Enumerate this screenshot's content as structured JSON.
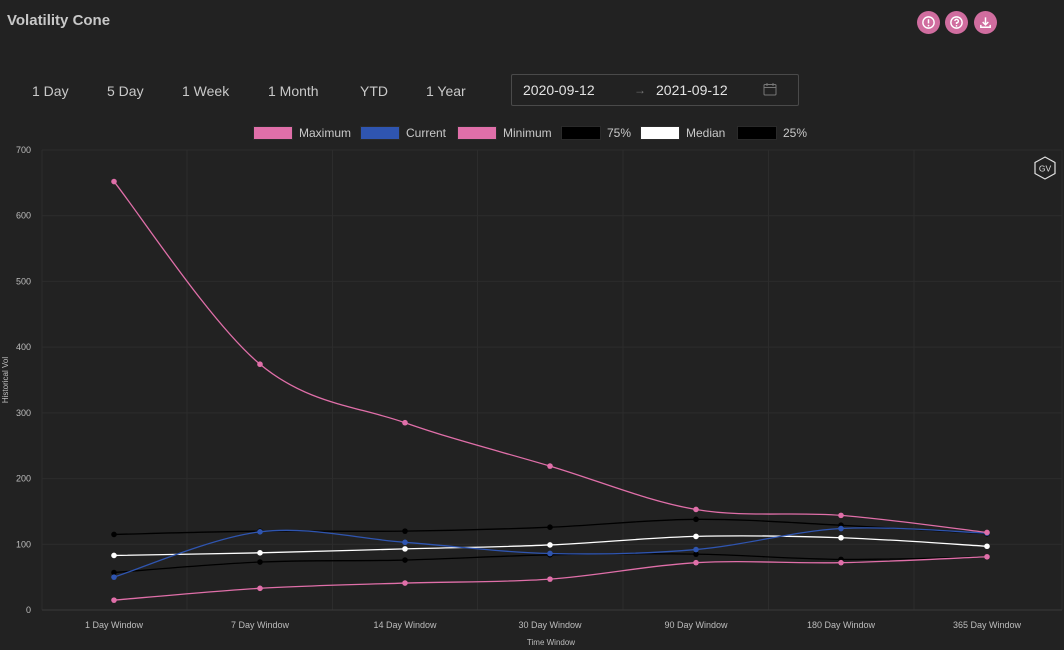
{
  "header": {
    "title": "Volatility Cone"
  },
  "actions": [
    {
      "name": "info-button",
      "icon": "alert-circle-icon"
    },
    {
      "name": "help-button",
      "icon": "question-circle-icon"
    },
    {
      "name": "download-button",
      "icon": "download-icon"
    }
  ],
  "ranges": [
    "1 Day",
    "5 Day",
    "1 Week",
    "1 Month",
    "YTD",
    "1 Year"
  ],
  "date_range": {
    "start": "2020-09-12",
    "end": "2021-09-12",
    "separator": "→"
  },
  "badge": {
    "text": "GV"
  },
  "colors": {
    "background": "#222222",
    "accent": "#d06d9f",
    "maximum": "#e06fa9",
    "current": "#2f55b0",
    "minimum": "#e06fa9",
    "p75": "#000000",
    "median": "#ffffff",
    "p25": "#000000"
  },
  "chart_data": {
    "type": "line",
    "title": "",
    "xlabel": "Time Window",
    "ylabel": "Historical Vol",
    "categories": [
      "1 Day Window",
      "7 Day Window",
      "14 Day Window",
      "30 Day Window",
      "90 Day Window",
      "180 Day Window",
      "365 Day Window"
    ],
    "ylim": [
      0,
      700
    ],
    "yticks": [
      0,
      100,
      200,
      300,
      400,
      500,
      600,
      700
    ],
    "grid": true,
    "legend_position": "top",
    "series": [
      {
        "name": "Maximum",
        "color": "#e06fa9",
        "values": [
          652,
          374,
          285,
          219,
          153,
          144,
          118
        ]
      },
      {
        "name": "Current",
        "color": "#2f55b0",
        "values": [
          50,
          119,
          103,
          86,
          92,
          124,
          117
        ]
      },
      {
        "name": "Minimum",
        "color": "#e06fa9",
        "values": [
          15,
          33,
          41,
          47,
          72,
          72,
          81
        ]
      },
      {
        "name": "75%",
        "color": "#000000",
        "values": [
          115,
          120,
          120,
          126,
          138,
          129,
          116
        ]
      },
      {
        "name": "Median",
        "color": "#ffffff",
        "values": [
          83,
          87,
          93,
          99,
          112,
          110,
          97
        ]
      },
      {
        "name": "25%",
        "color": "#000000",
        "values": [
          57,
          73,
          76,
          84,
          85,
          77,
          81
        ]
      }
    ]
  }
}
